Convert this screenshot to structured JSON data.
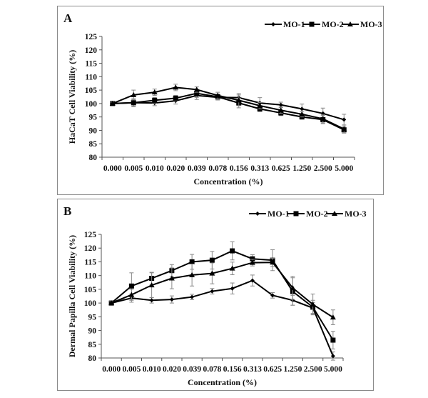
{
  "chart_data": [
    {
      "type": "line",
      "panel_label": "A",
      "title": "",
      "xlabel": "Concentration (%)",
      "ylabel": "HaCaT Cell Viability (%)",
      "ylim": [
        80,
        125
      ],
      "yticks": [
        80,
        85,
        90,
        95,
        100,
        105,
        110,
        115,
        120,
        125
      ],
      "categories": [
        "0.000",
        "0.005",
        "0.010",
        "0.020",
        "0.039",
        "0.078",
        "0.156",
        "0.313",
        "0.625",
        "1.250",
        "2.500",
        "5.000"
      ],
      "legend_position": "top-right",
      "grid": false,
      "series": [
        {
          "name": "MO-1",
          "marker": "diamond",
          "values": [
            100,
            100.3,
            100.2,
            101,
            103,
            102.3,
            102.2,
            100.2,
            99.5,
            98,
            96.3,
            94
          ],
          "errors": [
            0.5,
            1.5,
            1.0,
            1.2,
            1.5,
            1.0,
            1.5,
            2.0,
            1.0,
            1.8,
            2.0,
            2.0
          ]
        },
        {
          "name": "MO-2",
          "marker": "square",
          "values": [
            100,
            100.3,
            101.2,
            102,
            103.8,
            102.5,
            100.2,
            98,
            96.5,
            95,
            94,
            90.2
          ],
          "errors": [
            0.5,
            1.2,
            1.0,
            1.0,
            1.5,
            1.0,
            1.8,
            1.0,
            1.0,
            0.8,
            1.5,
            1.2
          ]
        },
        {
          "name": "MO-3",
          "marker": "triangle",
          "values": [
            100,
            103.2,
            104.2,
            106,
            105.2,
            103,
            101.2,
            99.2,
            97.5,
            96,
            94.3,
            90.5
          ],
          "errors": [
            0.5,
            1.8,
            1.2,
            1.2,
            1.0,
            1.2,
            2.0,
            1.2,
            1.2,
            1.0,
            1.5,
            1.5
          ]
        }
      ]
    },
    {
      "type": "line",
      "panel_label": "B",
      "title": "",
      "xlabel": "Concentration (%)",
      "ylabel": "Dermal Papilla Cell Viability (%)",
      "ylim": [
        80,
        125
      ],
      "yticks": [
        80,
        85,
        90,
        95,
        100,
        105,
        110,
        115,
        120,
        125
      ],
      "categories": [
        "0.000",
        "0.005",
        "0.010",
        "0.020",
        "0.039",
        "0.078",
        "0.156",
        "0.313",
        "0.625",
        "1.250",
        "2.500",
        "5.000"
      ],
      "legend_position": "top-right",
      "grid": false,
      "series": [
        {
          "name": "MO-1",
          "marker": "diamond",
          "values": [
            100,
            101.8,
            101,
            101.3,
            102.2,
            104.3,
            105.3,
            108.2,
            102.8,
            101,
            98.2,
            80.7
          ],
          "errors": [
            0.5,
            1.5,
            1.0,
            1.3,
            1.0,
            1.0,
            2.0,
            2.0,
            1.0,
            1.8,
            2.0,
            1.5
          ]
        },
        {
          "name": "MO-2",
          "marker": "square",
          "values": [
            100,
            106.2,
            109,
            111.8,
            115,
            115.6,
            119,
            116.1,
            115.6,
            104.2,
            98.5,
            86.5
          ],
          "errors": [
            0.5,
            4.8,
            2.2,
            2.2,
            2.7,
            3.2,
            3.3,
            1.5,
            3.8,
            5.0,
            2.5,
            3.2
          ]
        },
        {
          "name": "MO-3",
          "marker": "triangle",
          "values": [
            100,
            103,
            106.5,
            109,
            110.2,
            110.8,
            112.6,
            114.7,
            114.8,
            105.5,
            99.5,
            94.8
          ],
          "errors": [
            0.5,
            2.0,
            4.5,
            3.8,
            4.0,
            3.8,
            2.3,
            1.2,
            1.5,
            4.2,
            3.8,
            2.7
          ]
        }
      ]
    }
  ]
}
